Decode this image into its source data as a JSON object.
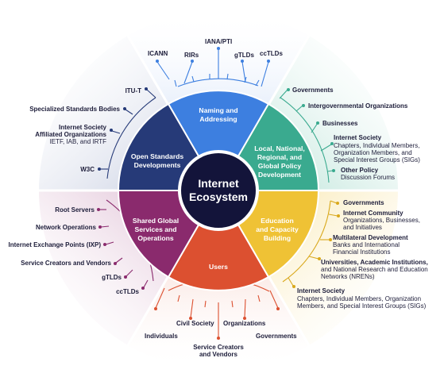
{
  "center": {
    "line1": "Internet",
    "line2": "Ecosystem"
  },
  "segments": {
    "naming": {
      "color": "#3d7fe0",
      "line1": "Naming and",
      "line2": "Addressing"
    },
    "policy": {
      "color": "#3aaa8f",
      "line1": "Local, National,",
      "line2": "Regional, and",
      "line3": "Global Policy",
      "line4": "Development"
    },
    "education": {
      "color": "#efc235",
      "line1": "Education",
      "line2": "and Capacity",
      "line3": "Building"
    },
    "users": {
      "color": "#dc5030",
      "line1": "Users"
    },
    "shared": {
      "color": "#8a2a6d",
      "line1": "Shared Global",
      "line2": "Services and",
      "line3": "Operations"
    },
    "standards": {
      "color": "#263a78",
      "line1": "Open Standards",
      "line2": "Developments"
    }
  },
  "naming_labels": [
    "ICANN",
    "RIRs",
    "IANA/PTI",
    "gTLDs",
    "ccTLDs"
  ],
  "policy_labels": {
    "governments": "Governments",
    "igo": "Intergovernmental Organizations",
    "businesses": "Businesses",
    "isoc_title": "Internet Society",
    "isoc_line1": "Chapters, Individual Members,",
    "isoc_line2": "Organization Members, and",
    "isoc_line3": "Special Interest Groups (SIGs)",
    "other1": "Other Policy",
    "other2": "Discussion Forums"
  },
  "education_labels": {
    "governments": "Governments",
    "ic1": "Internet Community",
    "ic2": "Organizations, Businesses,",
    "ic3": "and Initiatives",
    "mdb1": "Multilateral Development",
    "mdb2": "Banks and International",
    "mdb3": "Financial Institutions",
    "uni1": "Universities, Academic Institutions,",
    "uni2": "and National Research and Education",
    "uni3": "Networks (NRENs)",
    "isoc_title": "Internet Society",
    "isoc_line1": "Chapters, Individual Members, Organization",
    "isoc_line2": "Members, and Special Interest Groups (SIGs)"
  },
  "users_labels": {
    "individuals": "Individuals",
    "civil": "Civil Society",
    "orgs": "Organizations",
    "gov": "Governments",
    "scv1": "Service Creators",
    "scv2": "and Vendors"
  },
  "shared_labels": {
    "root": "Root Servers",
    "netops": "Network Operations",
    "ixp": "Internet Exchange Points (IXP)",
    "scv": "Service Creators and Vendors",
    "gtlds": "gTLDs",
    "cctlds": "ccTLDs"
  },
  "standards_labels": {
    "itut": "ITU-T",
    "ssb": "Specialized Standards Bodies",
    "isoc1": "Internet Society",
    "isoc2": "Affiliated Organizations",
    "isoc3": "IETF, IAB, and IRTF",
    "w3c": "W3C"
  }
}
